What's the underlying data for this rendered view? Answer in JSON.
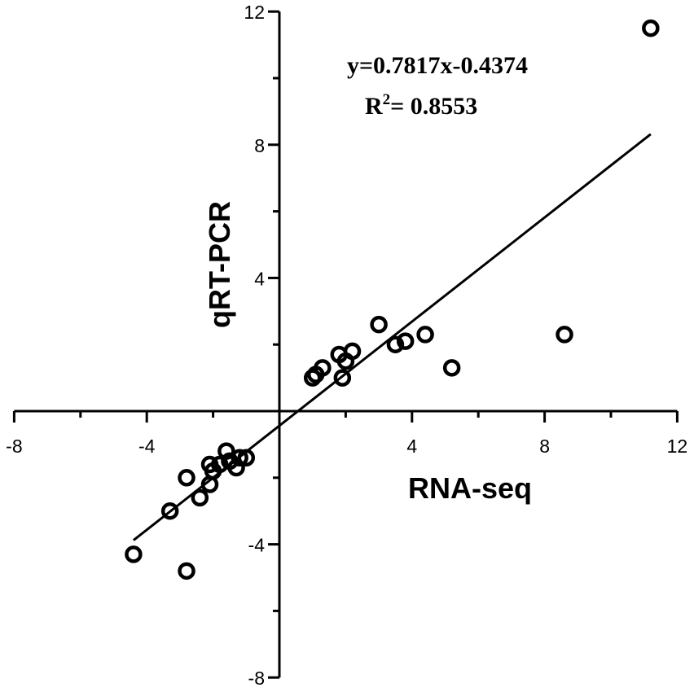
{
  "chart_data": {
    "type": "scatter",
    "xlabel": "RNA-seq",
    "ylabel": "qRT-PCR",
    "xlim": [
      -8,
      12
    ],
    "ylim": [
      -8,
      12
    ],
    "xticks": [
      -8,
      -4,
      4,
      8,
      12
    ],
    "yticks": [
      12,
      8,
      4,
      -4,
      -8
    ],
    "grid": false,
    "series": [
      {
        "points": [
          {
            "x": 11.2,
            "y": 11.5
          },
          {
            "x": 8.6,
            "y": 2.3
          },
          {
            "x": 5.2,
            "y": 1.3
          },
          {
            "x": 4.4,
            "y": 2.3
          },
          {
            "x": 3.8,
            "y": 2.1
          },
          {
            "x": 3.5,
            "y": 2.0
          },
          {
            "x": 3.0,
            "y": 2.6
          },
          {
            "x": 2.2,
            "y": 1.8
          },
          {
            "x": 2.0,
            "y": 1.5
          },
          {
            "x": 1.8,
            "y": 1.7
          },
          {
            "x": 1.9,
            "y": 1.0
          },
          {
            "x": 1.3,
            "y": 1.3
          },
          {
            "x": 1.1,
            "y": 1.1
          },
          {
            "x": 1.0,
            "y": 1.0
          },
          {
            "x": -1.0,
            "y": -1.4
          },
          {
            "x": -1.2,
            "y": -1.4
          },
          {
            "x": -1.3,
            "y": -1.7
          },
          {
            "x": -1.5,
            "y": -1.5
          },
          {
            "x": -1.6,
            "y": -1.2
          },
          {
            "x": -1.8,
            "y": -1.6
          },
          {
            "x": -2.0,
            "y": -1.8
          },
          {
            "x": -2.1,
            "y": -1.6
          },
          {
            "x": -2.1,
            "y": -2.2
          },
          {
            "x": -2.4,
            "y": -2.6
          },
          {
            "x": -2.8,
            "y": -2.0
          },
          {
            "x": -2.8,
            "y": -4.8
          },
          {
            "x": -3.3,
            "y": -3.0
          },
          {
            "x": -4.4,
            "y": -4.3
          }
        ]
      }
    ],
    "trendline": {
      "slope": 0.7817,
      "intercept": -0.4374,
      "x_range": [
        -4.4,
        11.2
      ]
    },
    "annotations": {
      "equation": "y=0.7817x-0.4374",
      "r2_prefix": "R",
      "r2_sup": "2",
      "r2_value": "= 0.8553"
    }
  }
}
